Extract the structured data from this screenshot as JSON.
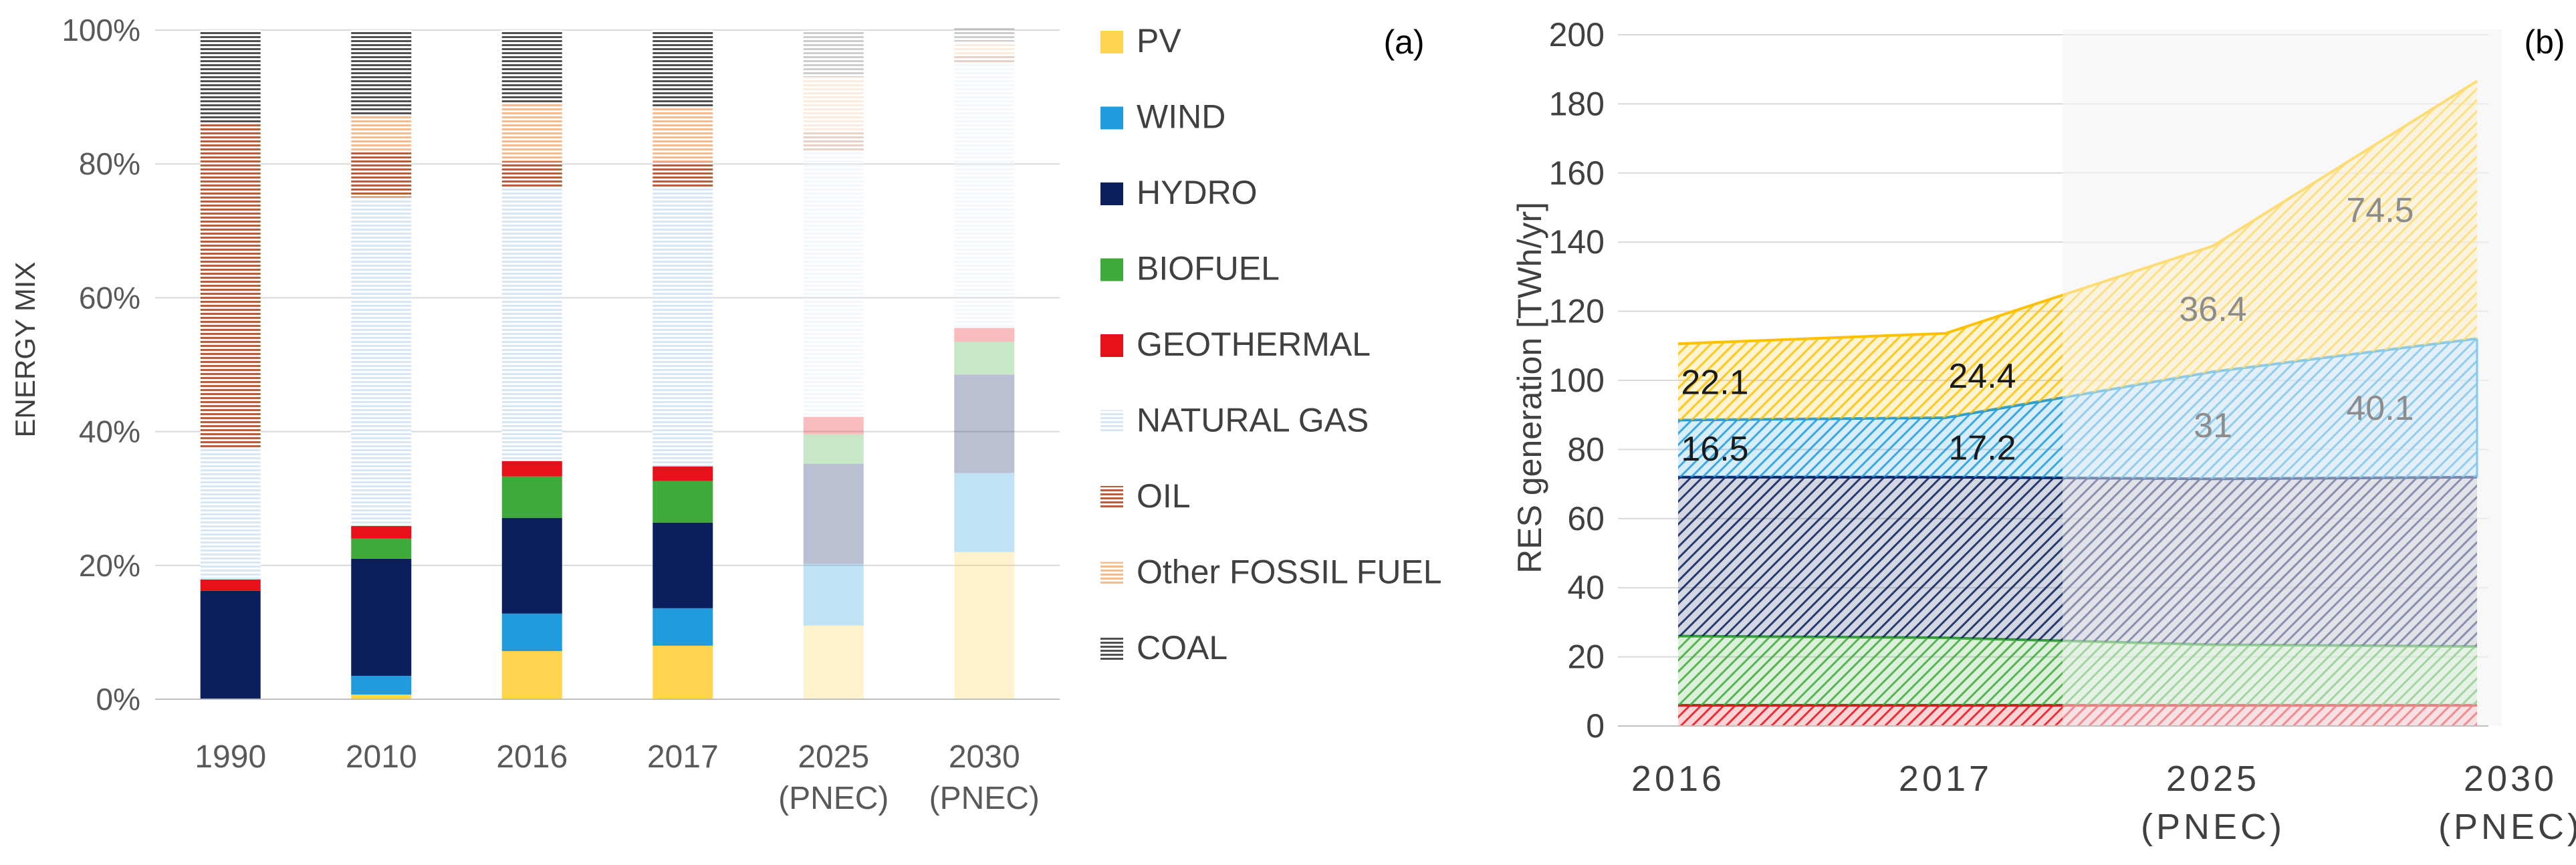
{
  "chart_data": [
    {
      "type": "bar",
      "stacked": true,
      "panel_label": "(a)",
      "ylabel": "ENERGY MIX",
      "ylim": [
        0,
        100
      ],
      "yticks": [
        "0%",
        "20%",
        "40%",
        "60%",
        "80%",
        "100%"
      ],
      "categories": [
        {
          "line1": "1990",
          "line2": ""
        },
        {
          "line1": "2010",
          "line2": ""
        },
        {
          "line1": "2016",
          "line2": ""
        },
        {
          "line1": "2017",
          "line2": ""
        },
        {
          "line1": "2025",
          "line2": "(PNEC)"
        },
        {
          "line1": "2030",
          "line2": "(PNEC)"
        }
      ],
      "faded_categories": [
        4,
        5
      ],
      "series": [
        {
          "name": "PV",
          "color": "#FFD54F",
          "pattern": "solid",
          "values": [
            0,
            0.7,
            7.2,
            8.0,
            11.0,
            22.0
          ]
        },
        {
          "name": "WIND",
          "color": "#1F9BDE",
          "pattern": "solid",
          "values": [
            0,
            2.8,
            5.6,
            5.6,
            9.2,
            11.8
          ]
        },
        {
          "name": "HYDRO",
          "color": "#0A1F5C",
          "pattern": "solid",
          "values": [
            16.2,
            17.5,
            14.3,
            12.8,
            15.0,
            14.7
          ]
        },
        {
          "name": "BIOFUEL",
          "color": "#3DAA3A",
          "pattern": "solid",
          "values": [
            0,
            3.0,
            6.2,
            6.2,
            4.4,
            4.9
          ]
        },
        {
          "name": "GEOTHERMAL",
          "color": "#E8101A",
          "pattern": "solid",
          "values": [
            1.7,
            1.9,
            2.3,
            2.2,
            2.6,
            2.1
          ]
        },
        {
          "name": "NATURAL GAS",
          "color": "#D9E7F5",
          "pattern": "hstripe",
          "values": [
            19.6,
            49.1,
            40.8,
            41.7,
            39.8,
            39.5
          ]
        },
        {
          "name": "OIL",
          "color": "#B0623A",
          "pattern": "hstripe",
          "values": [
            48.5,
            6.8,
            4.0,
            3.8,
            3.0,
            1.4
          ]
        },
        {
          "name": "Other FOSSIL FUEL",
          "color": "#F7B98E",
          "pattern": "hstripe",
          "values": [
            0,
            5.6,
            8.7,
            8.3,
            8.0,
            1.9
          ]
        },
        {
          "name": "COAL",
          "color": "#505050",
          "pattern": "hstripe",
          "values": [
            14.0,
            12.6,
            10.9,
            11.4,
            7.0,
            2.0
          ]
        }
      ]
    },
    {
      "type": "area",
      "stacked": true,
      "panel_label": "(b)",
      "ylabel": "RES generation [TWh/yr]",
      "ylim": [
        0,
        200
      ],
      "yticks": [
        "0",
        "20",
        "40",
        "60",
        "80",
        "100",
        "120",
        "140",
        "160",
        "180",
        "200"
      ],
      "x": [
        {
          "line1": "2016",
          "line2": ""
        },
        {
          "line1": "2017",
          "line2": ""
        },
        {
          "line1": "2025",
          "line2": "(PNEC)"
        },
        {
          "line1": "2030",
          "line2": "(PNEC)"
        }
      ],
      "shaded_region_label": "",
      "series": [
        {
          "name": "GEOTHERMAL",
          "color": "#E8101A",
          "values": [
            6.0,
            6.0,
            6.0,
            6.0
          ]
        },
        {
          "name": "BIOFUEL",
          "color": "#3DAA3A",
          "values": [
            20.0,
            19.5,
            17.5,
            17.0
          ]
        },
        {
          "name": "HYDRO",
          "color": "#0A1F5C",
          "values": [
            46.0,
            46.5,
            48.0,
            49.0
          ]
        },
        {
          "name": "WIND",
          "color": "#1F9BDE",
          "values": [
            16.5,
            17.2,
            31.0,
            40.1
          ]
        },
        {
          "name": "PV",
          "color": "#FFC000",
          "values": [
            22.1,
            24.4,
            36.4,
            74.5
          ]
        }
      ],
      "data_labels": [
        {
          "series": "PV",
          "point": 0,
          "text": "22.1"
        },
        {
          "series": "PV",
          "point": 1,
          "text": "24.4"
        },
        {
          "series": "PV",
          "point": 2,
          "text": "36.4"
        },
        {
          "series": "PV",
          "point": 3,
          "text": "74.5"
        },
        {
          "series": "WIND",
          "point": 0,
          "text": "16.5"
        },
        {
          "series": "WIND",
          "point": 1,
          "text": "17.2"
        },
        {
          "series": "WIND",
          "point": 2,
          "text": "31"
        },
        {
          "series": "WIND",
          "point": 3,
          "text": "40.1"
        }
      ]
    }
  ]
}
